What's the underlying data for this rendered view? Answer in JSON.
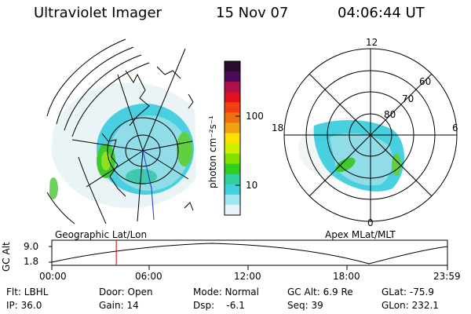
{
  "header": {
    "instrument": "Ultraviolet Imager",
    "date": "15 Nov 07",
    "time": "04:06:44 UT"
  },
  "colorbar": {
    "unit": "photon cm⁻²s⁻¹",
    "ticks": [
      "100",
      "10"
    ],
    "colors_top_to_bottom": [
      "#2a0a30",
      "#4a0a5a",
      "#b0104a",
      "#e01020",
      "#f04010",
      "#f07010",
      "#f0a010",
      "#ffe000",
      "#d0f000",
      "#80e000",
      "#30d020",
      "#30d0a0",
      "#40d0e0",
      "#a0e8f0",
      "#e8f4f8"
    ]
  },
  "panels": {
    "left_label": "Geographic Lat/Lon",
    "right_label": "Apex MLat/MLT",
    "polar_labels": {
      "top": "12",
      "left": "18",
      "right": "6",
      "bottom": "0",
      "lat60": "60",
      "lat70": "70",
      "lat80": "80"
    }
  },
  "altitude_plot": {
    "ylabel": "GC Alt",
    "yticks": [
      "9.0",
      "1.8"
    ],
    "xticks": [
      "00:00",
      "06:00",
      "12:00",
      "18:00",
      "23:59"
    ],
    "current_time_fraction": 0.163
  },
  "footer": {
    "row1": {
      "flt": "Flt: LBHL",
      "door": "Door: Open",
      "mode": "Mode: Normal",
      "gcalt": "GC Alt: 6.9 Re",
      "glat": "GLat: -75.9"
    },
    "row2": {
      "ip": "IP: 36.0",
      "gain": "Gain: 14",
      "dsp": "Dsp:    -6.1",
      "seq": "Seq: 39",
      "glon": "GLon: 232.1"
    }
  }
}
